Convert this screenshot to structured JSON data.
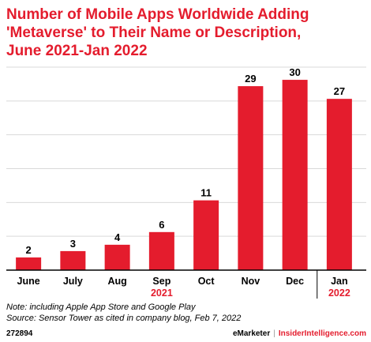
{
  "title_lines": [
    "Number of Mobile Apps Worldwide Adding",
    "'Metaverse' to Their Name or Description,",
    "June 2021-Jan 2022"
  ],
  "note": "Note: including Apple App Store and Google Play",
  "source": "Source: Sensor Tower as cited in company blog, Feb 7, 2022",
  "footer": {
    "chart_id": "272894",
    "brand_a": "eMarketer",
    "separator": "|",
    "brand_b": "InsiderIntelligence.com"
  },
  "colors": {
    "bar": "#e41c2d",
    "title": "#e41c2d",
    "year": "#e41c2d",
    "gridline": "#d9d9d9"
  },
  "chart_data": {
    "type": "bar",
    "categories": [
      "June",
      "July",
      "Aug",
      "Sep",
      "Oct",
      "Nov",
      "Dec",
      "Jan"
    ],
    "values": [
      2,
      3,
      4,
      6,
      11,
      29,
      30,
      27
    ],
    "year_labels": [
      {
        "label": "2021",
        "under_category": "Sep"
      },
      {
        "label": "2022",
        "under_category": "Jan"
      }
    ],
    "title": "Number of Mobile Apps Worldwide Adding 'Metaverse' to Their Name or Description, June 2021-Jan 2022",
    "xlabel": "",
    "ylabel": "",
    "ylim": [
      0,
      32
    ],
    "grid": "horizontal",
    "data_labels": true,
    "legend": "none"
  }
}
